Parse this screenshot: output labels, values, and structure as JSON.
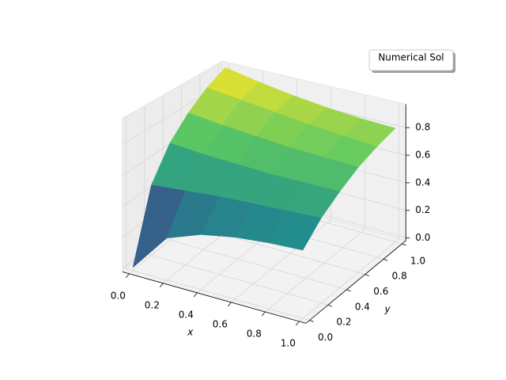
{
  "chart_data": {
    "type": "surface",
    "legend": {
      "label": "Numerical Sol",
      "position": "upper right"
    },
    "xlabel": "x",
    "ylabel": "y",
    "cmap": "viridis",
    "x": [
      0,
      0.2,
      0.4,
      0.6,
      0.8,
      1
    ],
    "y": [
      0,
      0.2,
      0.4,
      0.6,
      0.8,
      1
    ],
    "z": [
      [
        0,
        0.25,
        0.33,
        0.37,
        0.39,
        0.4
      ],
      [
        0.45,
        0.47,
        0.49,
        0.5,
        0.51,
        0.52
      ],
      [
        0.65,
        0.63,
        0.62,
        0.61,
        0.61,
        0.61
      ],
      [
        0.78,
        0.75,
        0.73,
        0.71,
        0.7,
        0.69
      ],
      [
        0.88,
        0.85,
        0.82,
        0.79,
        0.77,
        0.75
      ],
      [
        0.95,
        0.9,
        0.86,
        0.83,
        0.81,
        0.8
      ]
    ],
    "xlim": [
      0,
      1
    ],
    "ylim": [
      0,
      1
    ],
    "zlim": [
      0,
      0.95
    ],
    "xticks": [
      {
        "value": 0,
        "label": "0.0"
      },
      0.2,
      0.4,
      0.6,
      0.8,
      {
        "value": 1,
        "label": "1.0"
      }
    ],
    "yticks": [
      {
        "value": 0,
        "label": "0.0"
      },
      0.2,
      0.4,
      0.6,
      0.8,
      {
        "value": 1,
        "label": "1.0"
      }
    ],
    "zticks": [
      {
        "value": 0,
        "label": "0.0"
      },
      0.2,
      0.4,
      0.6,
      0.8
    ],
    "grid": true
  }
}
